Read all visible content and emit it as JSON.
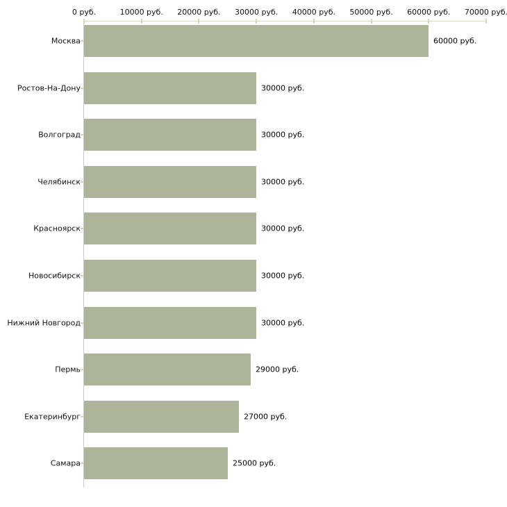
{
  "chart_data": {
    "type": "bar",
    "orientation": "horizontal",
    "title": "",
    "xlabel": "",
    "ylabel": "",
    "xlim": [
      0,
      70000
    ],
    "grid": false,
    "legend": null,
    "x_tick_values": [
      0,
      10000,
      20000,
      30000,
      40000,
      50000,
      60000,
      70000
    ],
    "x_tick_labels": [
      "0 руб.",
      "10000 руб.",
      "20000 руб.",
      "30000 руб.",
      "40000 руб.",
      "50000 руб.",
      "60000 руб.",
      "70000 руб."
    ],
    "categories": [
      "Москва",
      "Ростов-На-Дону",
      "Волгоград",
      "Челябинск",
      "Красноярск",
      "Новосибирск",
      "Нижний Новгород",
      "Пермь",
      "Екатеринбург",
      "Самара"
    ],
    "values": [
      60000,
      30000,
      30000,
      30000,
      30000,
      30000,
      30000,
      29000,
      27000,
      25000
    ],
    "value_labels": [
      "60000 руб.",
      "30000 руб.",
      "30000 руб.",
      "30000 руб.",
      "30000 руб.",
      "30000 руб.",
      "30000 руб.",
      "29000 руб.",
      "27000 руб.",
      "25000 руб."
    ],
    "bar_color": "#acb49a",
    "axis_line_color": "#d6d6ca",
    "y_axis_line_color": "#c9c9c9",
    "tick_mark_color": "#d4d4ae",
    "text_color": "#111111"
  }
}
